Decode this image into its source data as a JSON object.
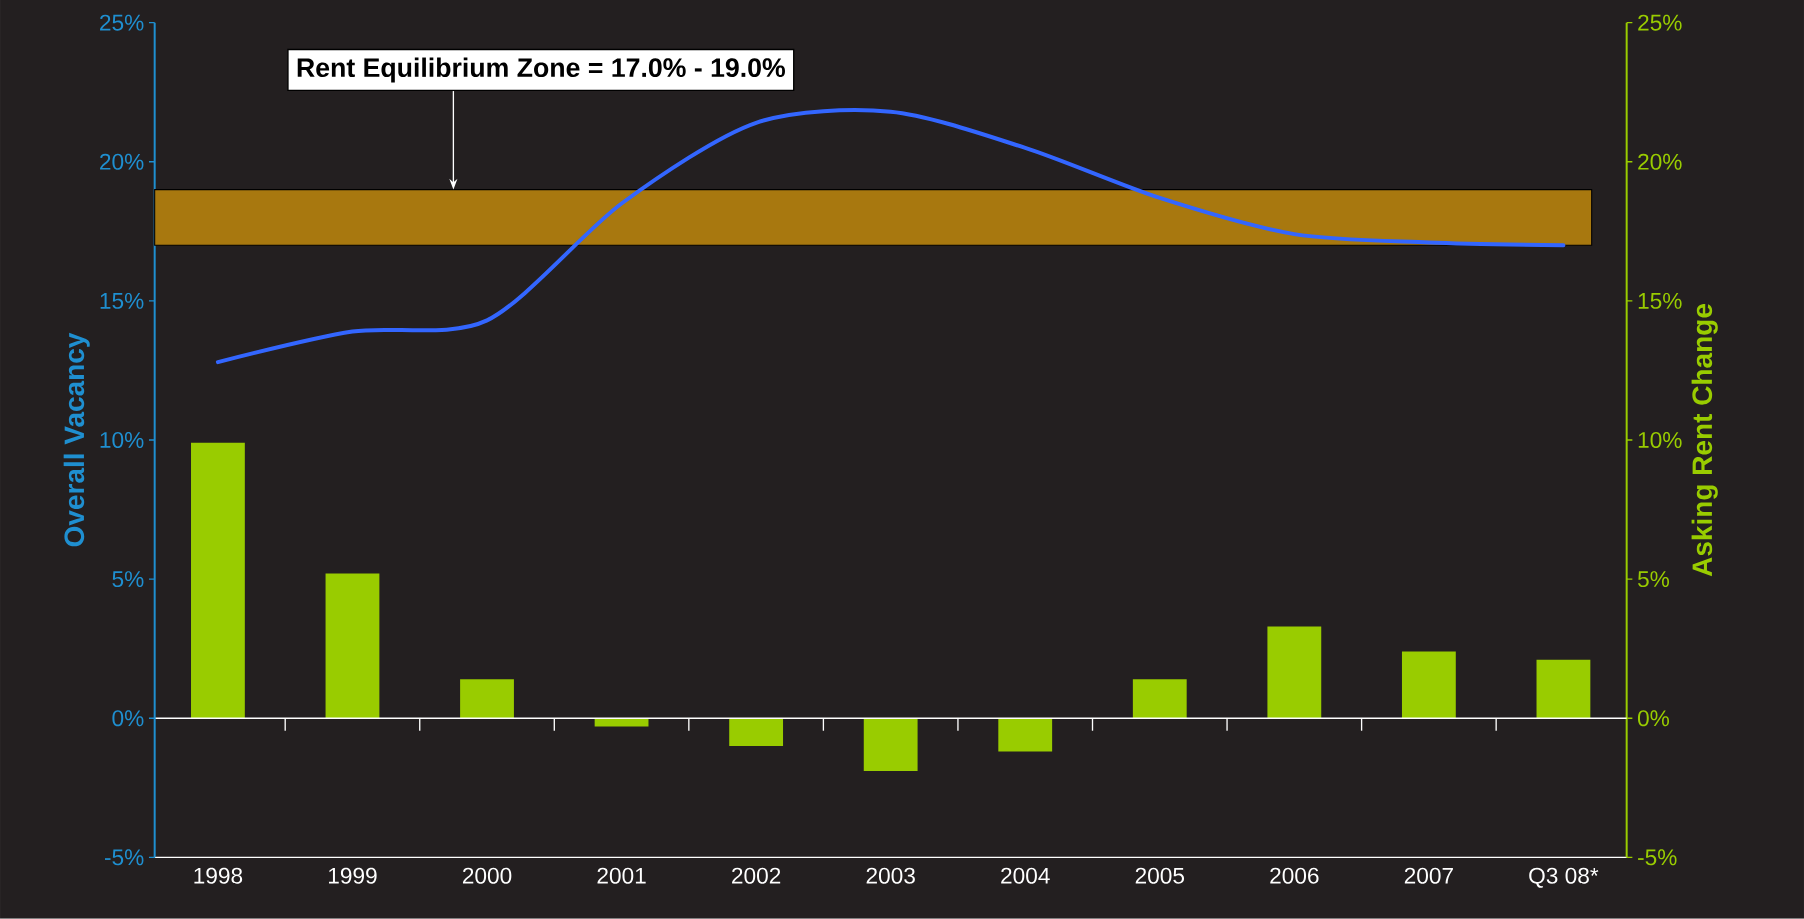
{
  "chart_data": {
    "type": "bar",
    "categories": [
      "1998",
      "1999",
      "2000",
      "2001",
      "2002",
      "2003",
      "2004",
      "2005",
      "2006",
      "2007",
      "Q3 08*"
    ],
    "series": [
      {
        "axis": "y2",
        "color": "#99cc00",
        "values": [
          9.9,
          5.2,
          1.4,
          -0.3,
          -1.0,
          -1.9,
          -1.2,
          1.4,
          3.3,
          2.4,
          2.1
        ]
      },
      {
        "type": "line",
        "color": "#3366ff",
        "values": [
          12.8,
          13.9,
          14.3,
          18.5,
          21.4,
          21.8,
          20.5,
          18.7,
          17.4,
          17.1,
          17.0
        ]
      }
    ],
    "ylabel": "Overall Vacancy",
    "y2label": "Asking Rent Change",
    "ylim": [
      -5,
      25
    ],
    "yticks": [
      {
        "value": -5,
        "label": "-5%"
      },
      {
        "value": 0,
        "label": "0%"
      },
      {
        "value": 5,
        "label": "5%"
      },
      {
        "value": 10,
        "label": "10%"
      },
      {
        "value": 15,
        "label": "15%"
      },
      {
        "value": 20,
        "label": "20%"
      },
      {
        "value": 25,
        "label": "25%"
      }
    ],
    "y2lim": [
      -5,
      25
    ],
    "y2ticks": [
      {
        "value": -5,
        "label": "-5%"
      },
      {
        "value": 0,
        "label": "0%"
      },
      {
        "value": 5,
        "label": "5%"
      },
      {
        "value": 10,
        "label": "10%"
      },
      {
        "value": 15,
        "label": "15%"
      },
      {
        "value": 20,
        "label": "20%"
      },
      {
        "value": 25,
        "label": "25%"
      }
    ],
    "bands": [
      {
        "axis": "y",
        "from": 17,
        "to": 19,
        "label": "Rent Equilibrium Zone = 17.0% - 19.0%",
        "color": "#a8780f"
      }
    ]
  }
}
